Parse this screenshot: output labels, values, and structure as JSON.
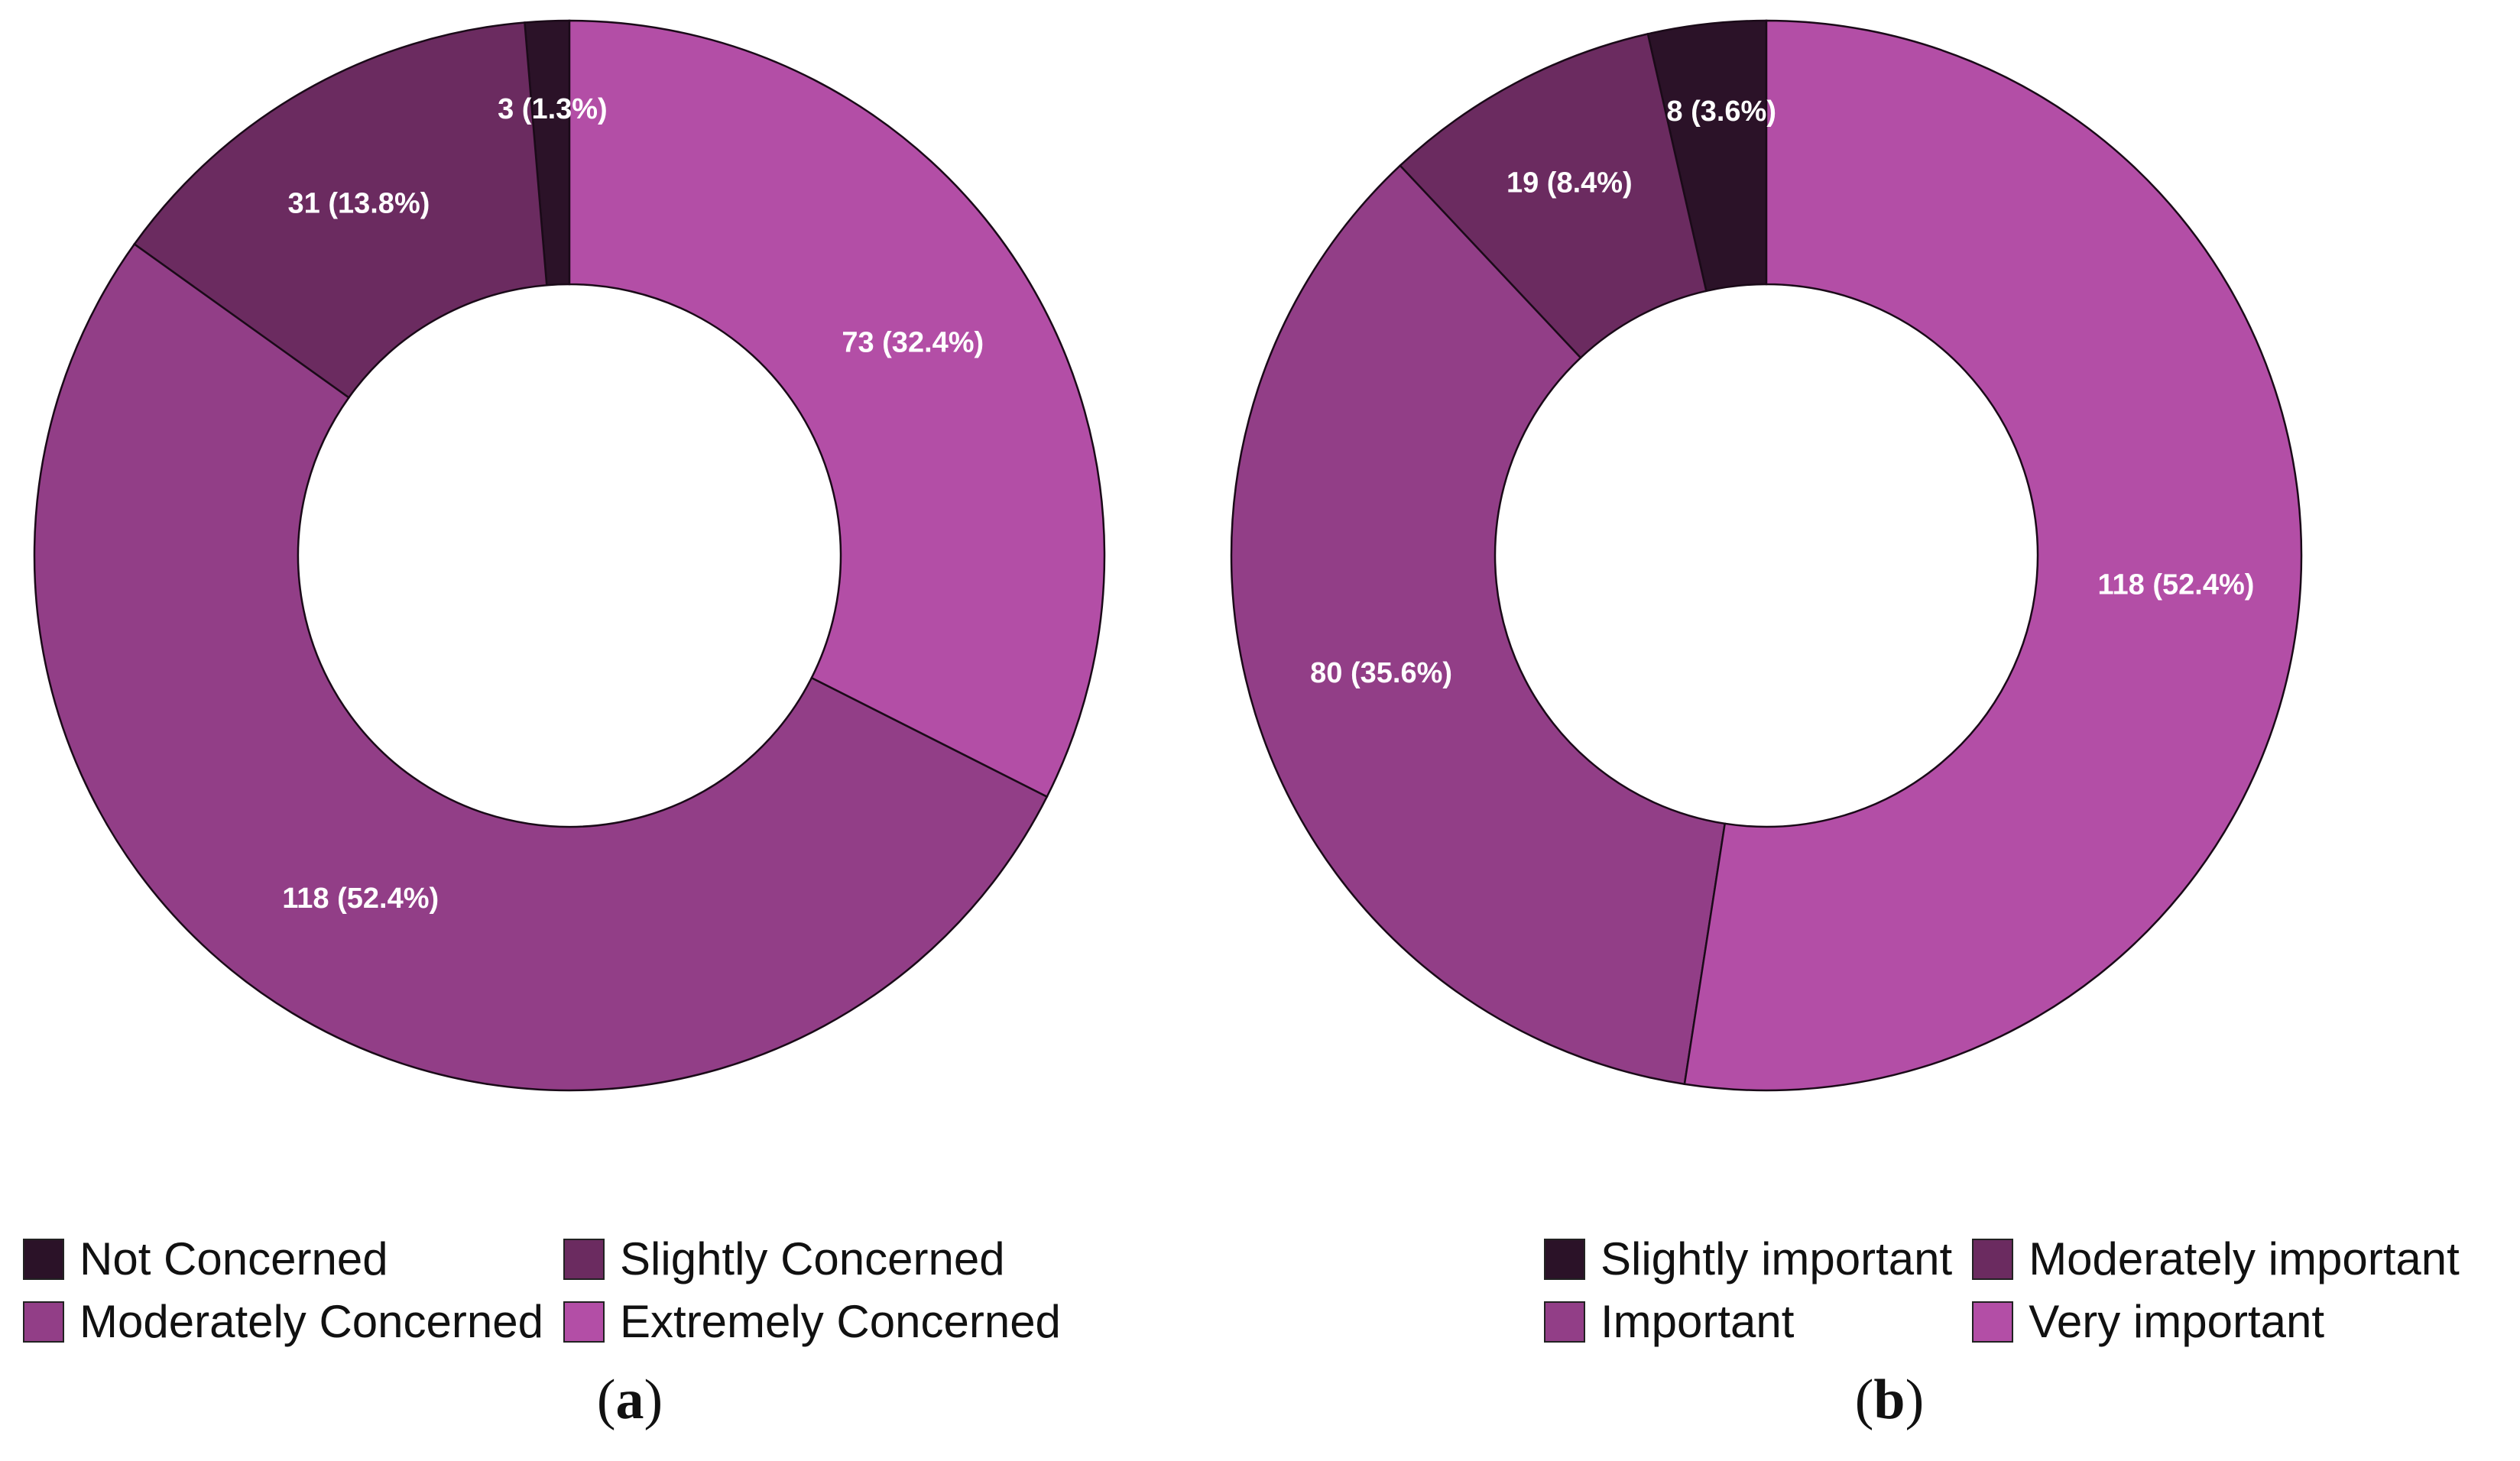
{
  "chart_data": [
    {
      "type": "pie",
      "categories": [
        "Not Concerned",
        "Slightly Concerned",
        "Moderately Concerned",
        "Extremely Concerned"
      ],
      "values": [
        3,
        31,
        118,
        73
      ],
      "percentages": [
        1.3,
        13.8,
        52.4,
        32.4
      ],
      "data_labels": [
        "3 (1.3%)",
        "31 (13.8%)",
        "118 (52.4%)",
        "73 (32.4%)"
      ],
      "colors": [
        "#2b1228",
        "#6b2b60",
        "#923e87",
        "#b34ea6"
      ],
      "donut": true,
      "direction": "counterclockwise",
      "legend_position": "bottom",
      "panel_label": "a"
    },
    {
      "type": "pie",
      "categories": [
        "Slightly important",
        "Moderately important",
        "Important",
        "Very important"
      ],
      "values": [
        8,
        19,
        80,
        118
      ],
      "percentages": [
        3.6,
        8.4,
        35.6,
        52.4
      ],
      "data_labels": [
        "8 (3.6%)",
        "19 (8.4%)",
        "80 (35.6%)",
        "118 (52.4%)"
      ],
      "colors": [
        "#2b1228",
        "#6b2b60",
        "#923e87",
        "#b34ea6"
      ],
      "donut": true,
      "direction": "counterclockwise",
      "legend_position": "bottom",
      "panel_label": "b"
    }
  ]
}
